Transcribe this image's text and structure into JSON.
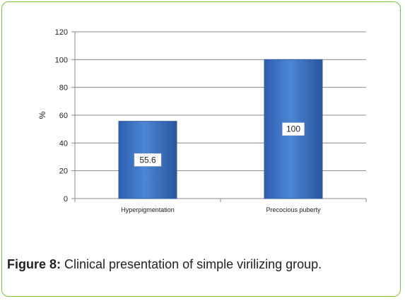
{
  "caption": {
    "label": "Figure 8:",
    "text": " Clinical presentation of simple virilizing group."
  },
  "chart_data": {
    "type": "bar",
    "title": "",
    "xlabel": "",
    "ylabel": "%",
    "categories": [
      "Hyperpigmentation",
      "Precocious puberty"
    ],
    "values": [
      55.6,
      100
    ],
    "data_labels": [
      "55.6",
      "100"
    ],
    "ylim": [
      0,
      120
    ],
    "yticks": [
      0,
      20,
      40,
      60,
      80,
      100,
      120
    ],
    "grid": true,
    "legend": "none",
    "bar_color": "#4a7fcf",
    "bar_edge_color": "#2f5a9e"
  },
  "colors": {
    "frame_border": "#7cbf3a",
    "grid": "#888888",
    "text": "#222222"
  }
}
